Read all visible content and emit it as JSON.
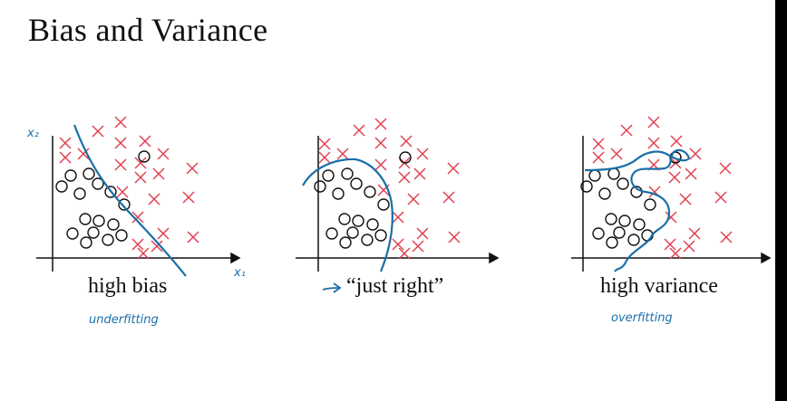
{
  "slide": {
    "title": "Bias and Variance",
    "panels": [
      {
        "caption": "high bias",
        "note": "underfitting",
        "axis_y_label": "x₂",
        "axis_x_label": "x₁"
      },
      {
        "caption": "“just right”",
        "note": "",
        "axis_y_label": "",
        "axis_x_label": ""
      },
      {
        "caption": "high variance",
        "note": "overfitting",
        "axis_y_label": "",
        "axis_x_label": ""
      }
    ]
  },
  "colors": {
    "cross": "#e04050",
    "circle": "#111111",
    "boundary": "#1a6fa8",
    "axis": "#111111",
    "sidebar": "#000000"
  },
  "icons": {
    "cross_marker": "x-mark-icon",
    "circle_marker": "circle-mark-icon",
    "arrow": "arrow-right-icon"
  }
}
